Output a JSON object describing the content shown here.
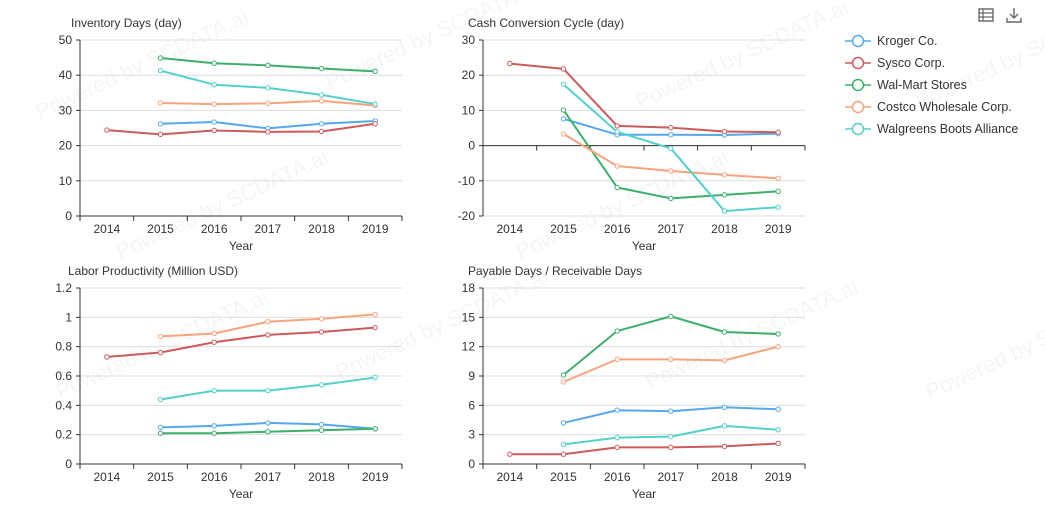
{
  "toolbar": {
    "data_view_icon": "data-view-icon",
    "download_icon": "download-icon"
  },
  "colors": {
    "axis": "#333333",
    "grid": "#dddddd",
    "text": "#333333"
  },
  "watermark": "Powered by SCDATA.ai",
  "series_styles": [
    {
      "name": "Kroger Co.",
      "color": "#55a8ee"
    },
    {
      "name": "Sysco Corp.",
      "color": "#cd5b5b"
    },
    {
      "name": "Wal-Mart Stores",
      "color": "#3daf6c"
    },
    {
      "name": "Costco Wholesale Corp.",
      "color": "#f8a37d"
    },
    {
      "name": "Walgreens Boots Alliance",
      "color": "#52d0cc"
    }
  ],
  "chart_data": [
    {
      "type": "line",
      "title": "Inventory Days (day)",
      "xlabel": "Year",
      "ylabel": "",
      "categories": [
        "2014",
        "2015",
        "2016",
        "2017",
        "2018",
        "2019"
      ],
      "ylim": [
        0,
        50
      ],
      "yticks": [
        0,
        10,
        20,
        30,
        40,
        50
      ],
      "ytick_labels": [
        "0",
        "10",
        "20",
        "30",
        "40",
        "50"
      ],
      "grid": true,
      "series": [
        {
          "name": "Kroger Co.",
          "values": [
            null,
            26.2,
            26.7,
            24.9,
            26.2,
            27.0
          ]
        },
        {
          "name": "Sysco Corp.",
          "values": [
            24.4,
            23.2,
            24.3,
            23.9,
            24.0,
            26.2
          ]
        },
        {
          "name": "Wal-Mart Stores",
          "values": [
            null,
            44.9,
            43.4,
            42.8,
            41.9,
            41.1
          ]
        },
        {
          "name": "Costco Wholesale Corp.",
          "values": [
            null,
            32.1,
            31.8,
            32.0,
            32.7,
            31.4
          ]
        },
        {
          "name": "Walgreens Boots Alliance",
          "values": [
            null,
            41.3,
            37.3,
            36.4,
            34.4,
            31.8
          ]
        }
      ]
    },
    {
      "type": "line",
      "title": "Cash Conversion Cycle (day)",
      "xlabel": "Year",
      "ylabel": "",
      "categories": [
        "2014",
        "2015",
        "2016",
        "2017",
        "2018",
        "2019"
      ],
      "ylim": [
        -20,
        30
      ],
      "yticks": [
        -20,
        -10,
        0,
        10,
        20,
        30
      ],
      "ytick_labels": [
        "-20",
        "-10",
        "0",
        "10",
        "20",
        "30"
      ],
      "grid": true,
      "series": [
        {
          "name": "Kroger Co.",
          "values": [
            null,
            7.6,
            3.1,
            3.1,
            3.0,
            3.4
          ]
        },
        {
          "name": "Sysco Corp.",
          "values": [
            23.3,
            21.8,
            5.6,
            5.1,
            4.0,
            3.8
          ]
        },
        {
          "name": "Wal-Mart Stores",
          "values": [
            null,
            10.1,
            -11.9,
            -15.0,
            -14.0,
            -13.0
          ]
        },
        {
          "name": "Costco Wholesale Corp.",
          "values": [
            null,
            3.3,
            -5.8,
            -7.2,
            -8.3,
            -9.3
          ]
        },
        {
          "name": "Walgreens Boots Alliance",
          "values": [
            null,
            17.4,
            3.9,
            -0.8,
            -18.6,
            -17.5
          ]
        }
      ]
    },
    {
      "type": "line",
      "title": "Labor Productivity (Million USD)",
      "xlabel": "Year",
      "ylabel": "",
      "categories": [
        "2014",
        "2015",
        "2016",
        "2017",
        "2018",
        "2019"
      ],
      "ylim": [
        0,
        1.2
      ],
      "yticks": [
        0,
        0.2,
        0.4,
        0.6,
        0.8,
        1.0,
        1.2
      ],
      "ytick_labels": [
        "0",
        "0.2",
        "0.4",
        "0.6",
        "0.8",
        "1",
        "1.2"
      ],
      "grid": true,
      "series": [
        {
          "name": "Kroger Co.",
          "values": [
            null,
            0.25,
            0.26,
            0.28,
            0.27,
            0.24
          ]
        },
        {
          "name": "Sysco Corp.",
          "values": [
            0.73,
            0.76,
            0.83,
            0.88,
            0.9,
            0.93
          ]
        },
        {
          "name": "Wal-Mart Stores",
          "values": [
            null,
            0.21,
            0.21,
            0.22,
            0.23,
            0.24
          ]
        },
        {
          "name": "Costco Wholesale Corp.",
          "values": [
            null,
            0.87,
            0.89,
            0.97,
            0.99,
            1.02
          ]
        },
        {
          "name": "Walgreens Boots Alliance",
          "values": [
            null,
            0.44,
            0.5,
            0.5,
            0.54,
            0.59
          ]
        }
      ]
    },
    {
      "type": "line",
      "title": "Payable Days / Receivable Days",
      "xlabel": "Year",
      "ylabel": "",
      "categories": [
        "2014",
        "2015",
        "2016",
        "2017",
        "2018",
        "2019"
      ],
      "ylim": [
        0,
        18
      ],
      "yticks": [
        0,
        3,
        6,
        9,
        12,
        15,
        18
      ],
      "ytick_labels": [
        "0",
        "3",
        "6",
        "9",
        "12",
        "15",
        "18"
      ],
      "grid": true,
      "series": [
        {
          "name": "Kroger Co.",
          "values": [
            null,
            4.2,
            5.5,
            5.4,
            5.8,
            5.6
          ]
        },
        {
          "name": "Sysco Corp.",
          "values": [
            1.0,
            1.0,
            1.7,
            1.7,
            1.8,
            2.1
          ]
        },
        {
          "name": "Wal-Mart Stores",
          "values": [
            null,
            9.1,
            13.6,
            15.1,
            13.5,
            13.3
          ]
        },
        {
          "name": "Costco Wholesale Corp.",
          "values": [
            null,
            8.4,
            10.7,
            10.7,
            10.6,
            12.0
          ]
        },
        {
          "name": "Walgreens Boots Alliance",
          "values": [
            null,
            2.0,
            2.7,
            2.8,
            3.9,
            3.5
          ]
        }
      ]
    }
  ]
}
